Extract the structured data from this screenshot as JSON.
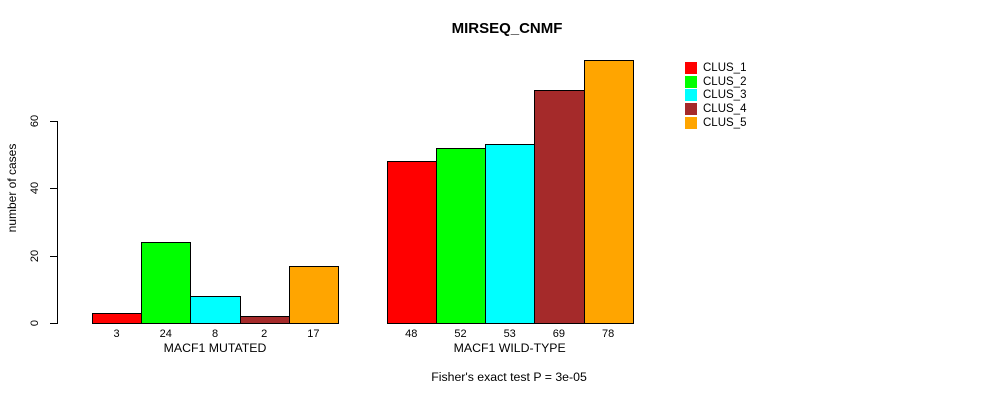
{
  "chart_data": {
    "type": "bar",
    "title": "MIRSEQ_CNMF",
    "ylabel": "number of cases",
    "xlabel": "",
    "ylim": [
      0,
      80
    ],
    "yticks": [
      0,
      20,
      40,
      60
    ],
    "grid": false,
    "legend_position": "right",
    "background": "#FFFFFF",
    "bar_border_color": "#000000",
    "value_labels_shown": true,
    "categories": [
      "MACF1 MUTATED",
      "MACF1 WILD-TYPE"
    ],
    "series": [
      {
        "name": "CLUS_1",
        "color": "#FF0000",
        "values": [
          3,
          48
        ]
      },
      {
        "name": "CLUS_2",
        "color": "#00FF00",
        "values": [
          24,
          52
        ]
      },
      {
        "name": "CLUS_3",
        "color": "#00FFFF",
        "values": [
          8,
          53
        ]
      },
      {
        "name": "CLUS_4",
        "color": "#A52A2A",
        "values": [
          2,
          69
        ]
      },
      {
        "name": "CLUS_5",
        "color": "#FFA500",
        "values": [
          17,
          78
        ]
      }
    ],
    "annotation": "Fisher's exact test P = 3e-05"
  }
}
